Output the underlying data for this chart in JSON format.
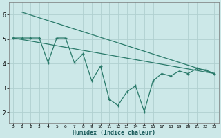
{
  "xlabel": "Humidex (Indice chaleur)",
  "bg_color": "#cce8e8",
  "plot_bg_color": "#cce8e8",
  "line_color": "#2a7a6a",
  "grid_color": "#b0d0d0",
  "ylim": [
    1.6,
    6.5
  ],
  "xlim": [
    -0.5,
    23.5
  ],
  "yticks": [
    2,
    3,
    4,
    5,
    6
  ],
  "xticks": [
    0,
    1,
    2,
    3,
    4,
    5,
    6,
    7,
    8,
    9,
    10,
    11,
    12,
    13,
    14,
    15,
    16,
    17,
    18,
    19,
    20,
    21,
    22,
    23
  ],
  "line1_x": [
    0,
    1,
    2,
    3,
    4,
    5,
    6,
    7,
    8,
    9,
    10,
    11,
    12,
    13,
    14,
    15,
    16,
    17,
    18,
    19,
    20,
    21,
    22,
    23
  ],
  "line1_y": [
    5.05,
    5.05,
    5.05,
    5.05,
    4.05,
    5.05,
    5.05,
    4.05,
    4.4,
    3.3,
    3.9,
    2.55,
    2.3,
    2.85,
    3.1,
    2.05,
    3.3,
    3.6,
    3.5,
    3.7,
    3.6,
    3.8,
    3.75,
    3.6
  ],
  "line2_x": [
    0,
    23
  ],
  "line2_y": [
    5.05,
    3.6
  ],
  "line3_x": [
    1,
    23
  ],
  "line3_y": [
    6.1,
    3.6
  ]
}
